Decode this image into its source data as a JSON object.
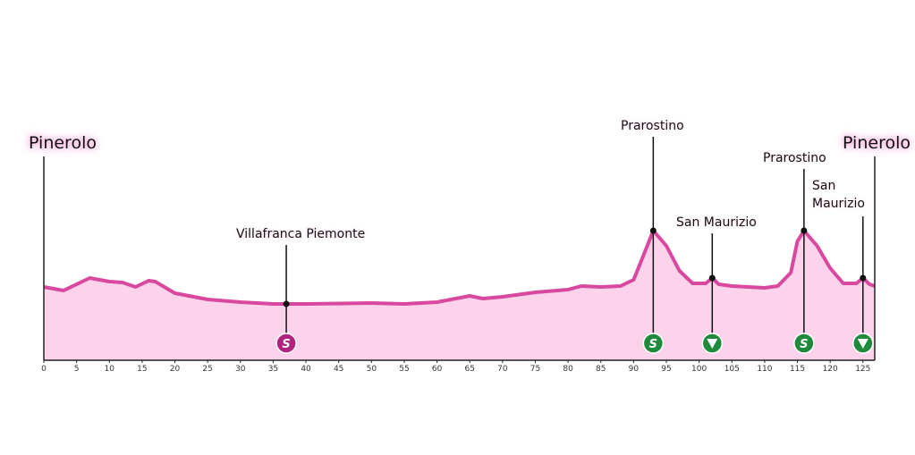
{
  "chart_data": {
    "type": "area",
    "start": "Pinerolo",
    "finish": "Pinerolo",
    "x": [
      0,
      3,
      7,
      10,
      12,
      14,
      16,
      17,
      20,
      25,
      30,
      35,
      37,
      40,
      50,
      55,
      60,
      65,
      67,
      70,
      75,
      80,
      82,
      85,
      88,
      90,
      91,
      93,
      95,
      97,
      99,
      101,
      102,
      103,
      105,
      110,
      112,
      114,
      115,
      116,
      118,
      120,
      122,
      124,
      125,
      126,
      126.8
    ],
    "values": [
      82,
      78,
      92,
      88,
      87,
      82,
      89,
      88,
      75,
      68,
      65,
      63,
      63,
      63,
      64,
      63,
      65,
      72,
      69,
      71,
      76,
      79,
      83,
      82,
      83,
      90,
      108,
      145,
      128,
      100,
      86,
      86,
      92,
      85,
      83,
      81,
      83,
      98,
      133,
      145,
      128,
      103,
      86,
      86,
      92,
      85,
      83
    ],
    "color": "#d9489f",
    "fill": "#fcd3ea",
    "xlim": [
      0,
      126.8
    ],
    "ylim": [
      0,
      200
    ],
    "xticks": [
      0,
      5,
      10,
      15,
      20,
      25,
      30,
      35,
      40,
      45,
      50,
      55,
      60,
      65,
      70,
      75,
      80,
      85,
      90,
      95,
      100,
      105,
      110,
      115,
      120,
      125
    ],
    "places": [
      {
        "name": "Villafranca Piemonte",
        "km": 37,
        "marker": "S",
        "color": "#b0237f"
      },
      {
        "name": "Prarostino",
        "km": 93,
        "marker": "S",
        "color": "#1f8a3c"
      },
      {
        "name": "San Maurizio",
        "km": 102,
        "marker": null,
        "color": "#1f8a3c"
      },
      {
        "name": "Prarostino",
        "km": 116,
        "marker": "S",
        "color": "#1f8a3c"
      },
      {
        "name": "San Maurizio",
        "km": 125,
        "marker": null,
        "color": "#1f8a3c"
      }
    ]
  }
}
